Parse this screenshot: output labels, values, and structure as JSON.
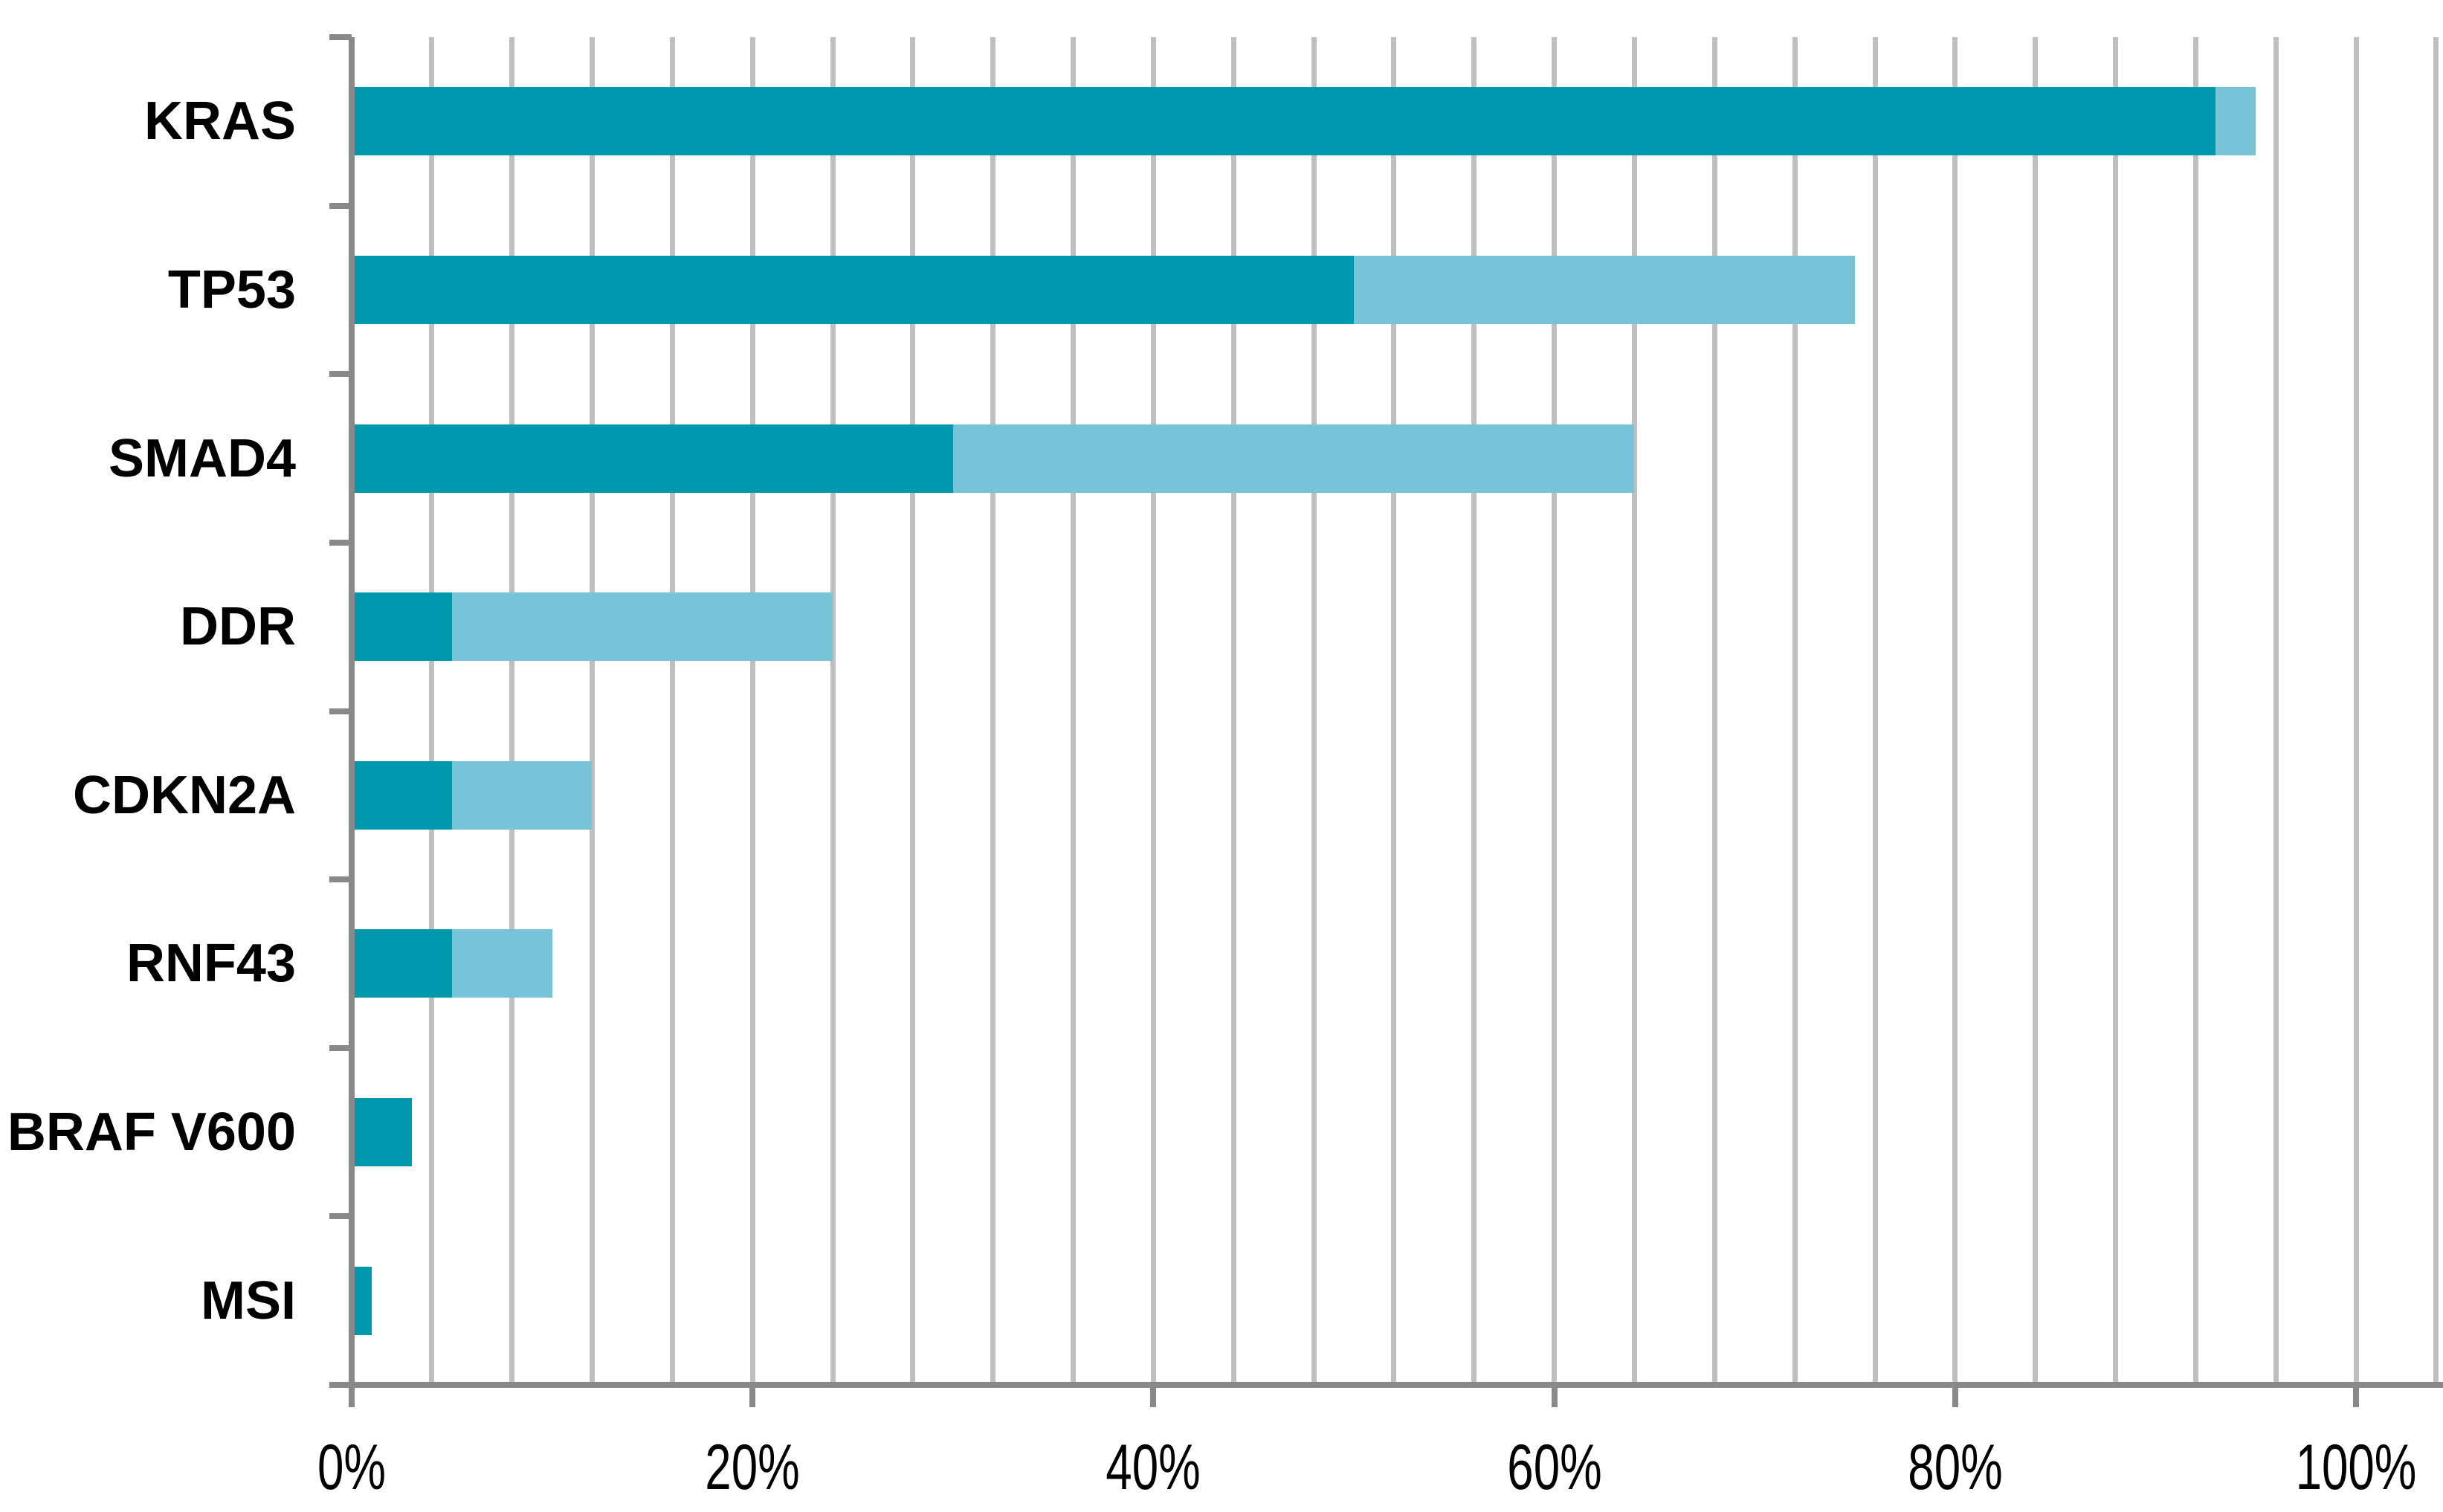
{
  "chart_data": {
    "type": "bar",
    "orientation": "horizontal",
    "stacked": true,
    "title": "",
    "xlabel": "",
    "ylabel": "",
    "categories": [
      "KRAS",
      "TP53",
      "SMAD4",
      "DDR",
      "CDKN2A",
      "RNF43",
      "BRAF V600",
      "MSI"
    ],
    "series": [
      {
        "name": "dark-teal-segment",
        "color": "#0098AE",
        "values": [
          93,
          50,
          30,
          5,
          5,
          5,
          3,
          1
        ]
      },
      {
        "name": "light-blue-segment",
        "color": "#77C4D8",
        "values": [
          2,
          25,
          34,
          19,
          7,
          5,
          0,
          0
        ]
      }
    ],
    "totals": [
      95,
      75,
      64,
      24,
      12,
      10,
      3,
      1
    ],
    "x_tick_labels": [
      "0%",
      "20%",
      "40%",
      "60%",
      "80%",
      "100%"
    ],
    "x_tick_values": [
      0,
      20,
      40,
      60,
      80,
      100
    ],
    "xlim": [
      0,
      104
    ],
    "minor_gridline_step_percent": 4,
    "grid": true,
    "legend_position": "none"
  },
  "colors": {
    "gridline": "#BFBFBF",
    "axis": "#898989",
    "label_text": "#000000",
    "background": "#FFFFFF"
  }
}
